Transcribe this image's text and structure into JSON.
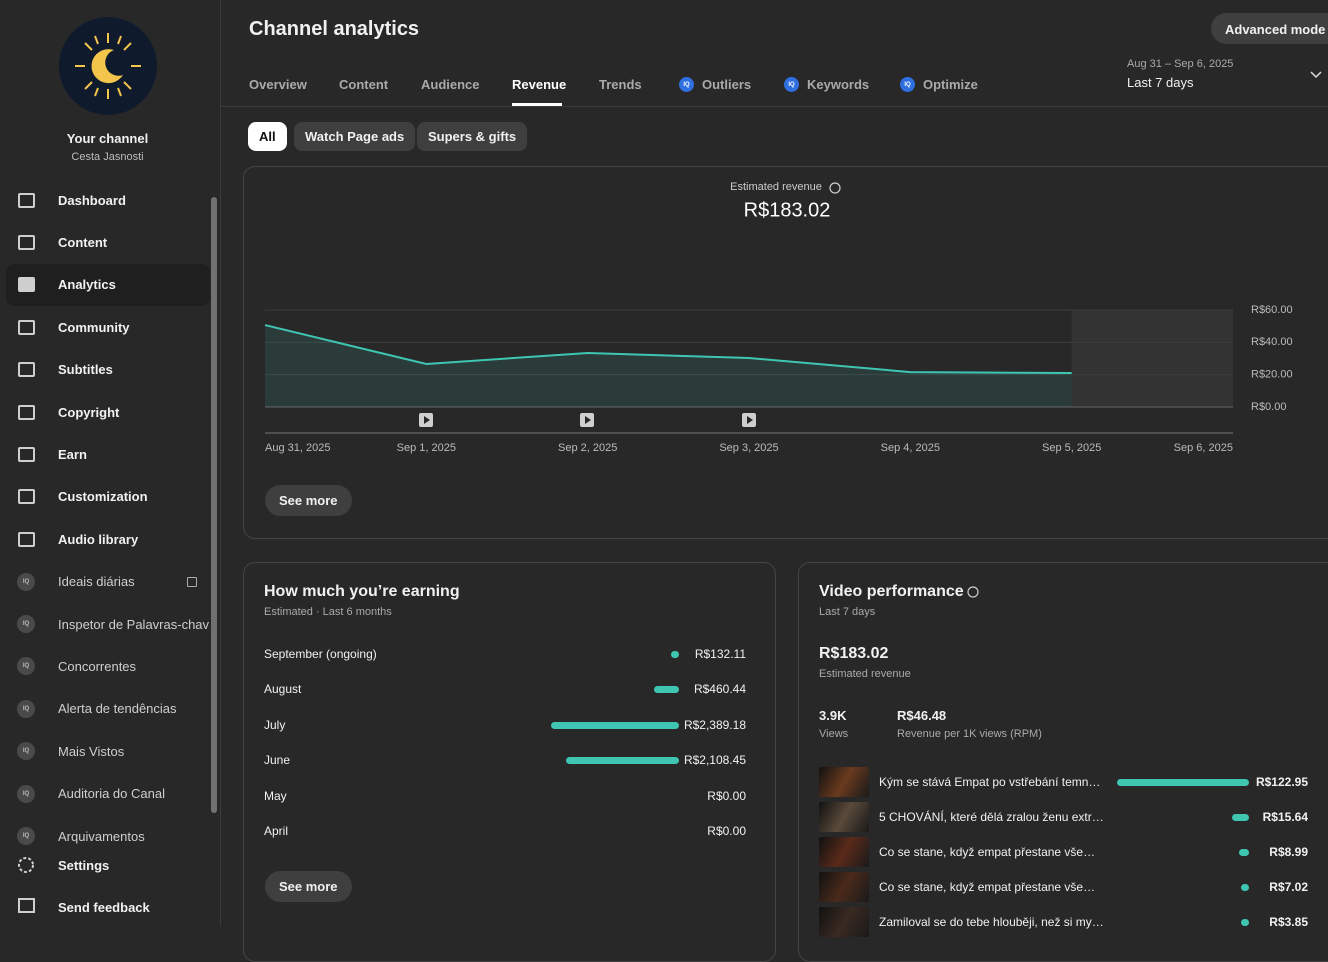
{
  "sidebar": {
    "channel_title": "Your channel",
    "channel_name": "Cesta Jasnosti",
    "nav": [
      {
        "label": "Dashboard"
      },
      {
        "label": "Content"
      },
      {
        "label": "Analytics",
        "active": true
      },
      {
        "label": "Community"
      },
      {
        "label": "Subtitles"
      },
      {
        "label": "Copyright"
      },
      {
        "label": "Earn"
      },
      {
        "label": "Customization"
      },
      {
        "label": "Audio library"
      },
      {
        "label": "Ideais diárias",
        "badge": "IQ",
        "external": true
      },
      {
        "label": "Inspetor de Palavras-chav",
        "badge": "IQ"
      },
      {
        "label": "Concorrentes",
        "badge": "IQ"
      },
      {
        "label": "Alerta de tendências",
        "badge": "IQ"
      },
      {
        "label": "Mais Vistos",
        "badge": "IQ"
      },
      {
        "label": "Auditoria do Canal",
        "badge": "IQ"
      },
      {
        "label": "Arquivamentos",
        "badge": "IQ"
      }
    ],
    "footer": [
      "Settings",
      "Send feedback"
    ]
  },
  "header": {
    "title": "Channel analytics",
    "advanced_mode": "Advanced mode",
    "tabs": [
      {
        "label": "Overview"
      },
      {
        "label": "Content"
      },
      {
        "label": "Audience"
      },
      {
        "label": "Revenue",
        "active": true
      },
      {
        "label": "Trends"
      },
      {
        "label": "Outliers",
        "badge": "IQ"
      },
      {
        "label": "Keywords",
        "badge": "IQ"
      },
      {
        "label": "Optimize",
        "badge": "IQ"
      }
    ],
    "date_range": "Aug 31 – Sep 6, 2025",
    "period": "Last 7 days"
  },
  "filters": [
    {
      "label": "All",
      "active": true
    },
    {
      "label": "Watch Page ads"
    },
    {
      "label": "Supers & gifts"
    }
  ],
  "chart_data": {
    "type": "line",
    "title": "Estimated revenue",
    "subtitle": "R$183.02",
    "x": [
      "Aug 31, 2025",
      "Sep 1, 2025",
      "Sep 2, 2025",
      "Sep 3, 2025",
      "Sep 4, 2025",
      "Sep 5, 2025",
      "Sep 6, 2025"
    ],
    "values": [
      50.7,
      26.6,
      33.4,
      30.3,
      21.6,
      21.0,
      null
    ],
    "color": "#3fc6b3",
    "ylim": [
      0,
      60
    ],
    "yticks": [
      {
        "value": 0,
        "label": "R$0.00"
      },
      {
        "value": 20,
        "label": "R$20.00"
      },
      {
        "value": 40,
        "label": "R$40.00"
      },
      {
        "value": 60,
        "label": "R$60.00"
      }
    ],
    "grid": true,
    "see_more": "See more"
  },
  "earnings": {
    "title": "How much you’re earning",
    "subtitle": "Estimated · Last 6 months",
    "months": [
      "September (ongoing)",
      "August",
      "July",
      "June",
      "May",
      "April"
    ],
    "values": [
      132.11,
      460.44,
      2389.18,
      2108.45,
      0,
      0
    ],
    "value_labels": [
      "R$132.11",
      "R$460.44",
      "R$2,389.18",
      "R$2,108.45",
      "R$0.00",
      "R$0.00"
    ],
    "color": "#3fc6b3",
    "see_more": "See more"
  },
  "video_performance": {
    "title": "Video performance",
    "subtitle": "Last 7 days",
    "revenue": "R$183.02",
    "revenue_label": "Estimated revenue",
    "views": "3.9K",
    "views_label": "Views",
    "rpm": "R$46.48",
    "rpm_label": "Revenue per 1K views (RPM)",
    "videos": [
      "Kým se stává Empat po vstřebání temn…",
      "5 CHOVÁNÍ, které dělá zralou ženu extr…",
      "Co se stane, když empat přestane vše…",
      "Co se stane, když empat přestane vše…",
      "Zamiloval se do tebe hlouběji, než si my…"
    ],
    "values": [
      122.95,
      15.64,
      8.99,
      7.02,
      3.85
    ],
    "value_labels": [
      "R$122.95",
      "R$15.64",
      "R$8.99",
      "R$7.02",
      "R$3.85"
    ],
    "color": "#3fc6b3"
  }
}
